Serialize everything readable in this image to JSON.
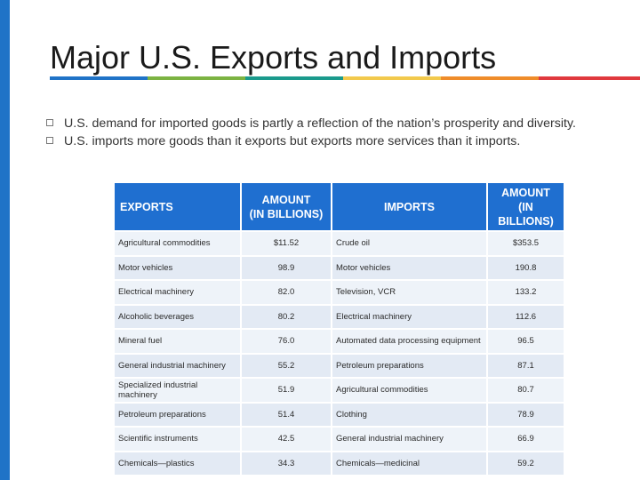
{
  "slide": {
    "title": "Major U.S. Exports and Imports",
    "accent_bar_color": "#1f73c7",
    "stripe_colors": [
      "#1f73c7",
      "#7cb342",
      "#1a9a8c",
      "#f2c94c",
      "#ef8c2a",
      "#e0393e"
    ]
  },
  "bullets": [
    "U.S. demand for imported goods is partly a reflection of the nation’s prosperity and diversity.",
    "U.S. imports more goods than it exports but exports more services than it imports."
  ],
  "table": {
    "header_color": "#1f6fd0",
    "headers": {
      "exports": "EXPORTS",
      "exports_amount_line1": "AMOUNT",
      "exports_amount_line2": "(IN BILLIONS)",
      "imports": "IMPORTS",
      "imports_amount_line1": "AMOUNT",
      "imports_amount_line2": "(IN BILLIONS)"
    },
    "rows": [
      {
        "export": "Agricultural commodities",
        "export_amount": "$11.52",
        "import": "Crude oil",
        "import_amount": "$353.5"
      },
      {
        "export": "Motor vehicles",
        "export_amount": "98.9",
        "import": "Motor vehicles",
        "import_amount": "190.8"
      },
      {
        "export": "Electrical machinery",
        "export_amount": "82.0",
        "import": "Television, VCR",
        "import_amount": "133.2"
      },
      {
        "export": "Alcoholic beverages",
        "export_amount": "80.2",
        "import": "Electrical machinery",
        "import_amount": "112.6"
      },
      {
        "export": "Mineral fuel",
        "export_amount": "76.0",
        "import": "Automated data processing equipment",
        "import_amount": "96.5"
      },
      {
        "export": "General industrial machinery",
        "export_amount": "55.2",
        "import": "Petroleum preparations",
        "import_amount": "87.1"
      },
      {
        "export": "Specialized industrial machinery",
        "export_amount": "51.9",
        "import": "Agricultural commodities",
        "import_amount": "80.7"
      },
      {
        "export": "Petroleum preparations",
        "export_amount": "51.4",
        "import": "Clothing",
        "import_amount": "78.9"
      },
      {
        "export": "Scientific instruments",
        "export_amount": "42.5",
        "import": "General industrial machinery",
        "import_amount": "66.9"
      },
      {
        "export": "Chemicals—plastics",
        "export_amount": "34.3",
        "import": "Chemicals—medicinal",
        "import_amount": "59.2"
      }
    ]
  }
}
